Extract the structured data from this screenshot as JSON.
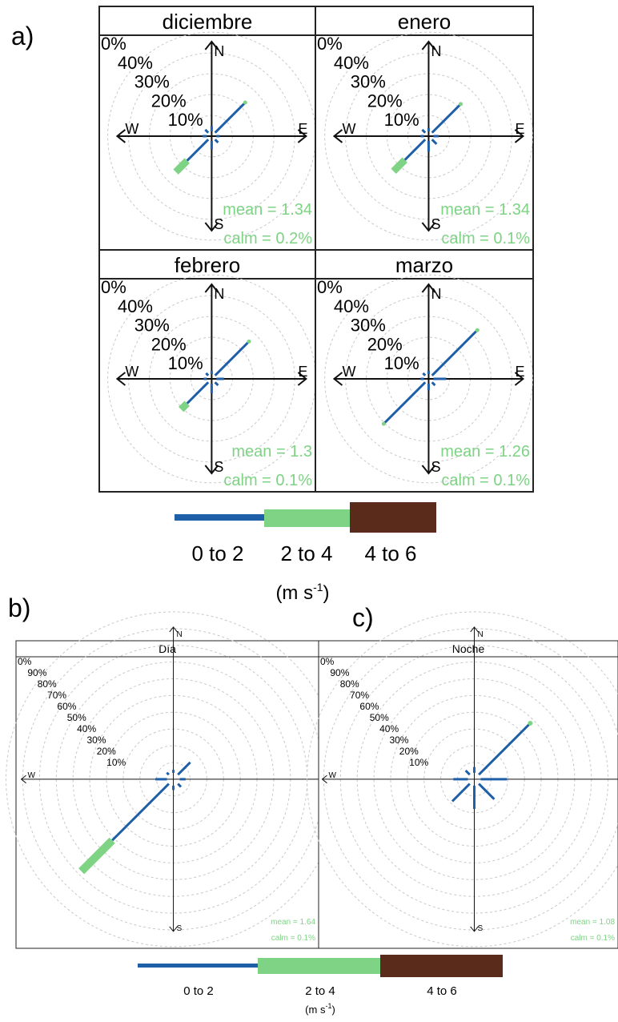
{
  "part_labels": {
    "a": "a)",
    "b": "b)",
    "c": "c)"
  },
  "colors": {
    "bin1": "#1f5fa8",
    "bin2": "#7ed385",
    "bin3": "#5a2a1a",
    "grid": "#c8c8c8",
    "annot": "#7ed385",
    "axis": "#111111"
  },
  "directions": [
    "N",
    "NE",
    "E",
    "SE",
    "S",
    "SW",
    "W",
    "NW"
  ],
  "compass": {
    "n": "N",
    "e": "E",
    "s": "S",
    "w": "W"
  },
  "chart_data": [
    {
      "type": "windrose",
      "group": "a",
      "title": "diciembre",
      "ring_labels": [
        "0%",
        "40%",
        "30%",
        "20%",
        "10%"
      ],
      "mean_text": "mean = 1.34",
      "calm_text": "calm = 0.2%",
      "series": [
        {
          "name": "0 to 2",
          "values": [
            5,
            40,
            3,
            4,
            8,
            28,
            4,
            4
          ]
        },
        {
          "name": "2 to 4",
          "values": [
            0,
            0,
            0,
            0,
            0,
            15,
            0,
            0
          ]
        }
      ]
    },
    {
      "type": "windrose",
      "group": "a",
      "title": "enero",
      "ring_labels": [
        "0%",
        "40%",
        "30%",
        "20%",
        "10%"
      ],
      "mean_text": "mean = 1.34",
      "calm_text": "calm = 0.1%",
      "series": [
        {
          "name": "0 to 2",
          "values": [
            3,
            38,
            5,
            6,
            10,
            27,
            3,
            4
          ]
        },
        {
          "name": "2 to 4",
          "values": [
            0,
            0,
            0,
            0,
            0,
            15,
            0,
            0
          ]
        }
      ]
    },
    {
      "type": "windrose",
      "group": "a",
      "title": "febrero",
      "ring_labels": [
        "0%",
        "40%",
        "30%",
        "20%",
        "10%"
      ],
      "mean_text": "mean = 1.3",
      "calm_text": "calm = 0.1%",
      "series": [
        {
          "name": "0 to 2",
          "values": [
            3,
            45,
            7,
            4,
            9,
            28,
            3,
            3
          ]
        },
        {
          "name": "2 to 4",
          "values": [
            0,
            0,
            0,
            0,
            0,
            8,
            0,
            0
          ]
        }
      ]
    },
    {
      "type": "windrose",
      "group": "a",
      "title": "marzo",
      "ring_labels": [
        "0%",
        "40%",
        "30%",
        "20%",
        "10%"
      ],
      "mean_text": "mean = 1.26",
      "calm_text": "calm = 0.1%",
      "series": [
        {
          "name": "0 to 2",
          "values": [
            3,
            60,
            12,
            4,
            6,
            55,
            3,
            3
          ]
        },
        {
          "name": "2 to 4",
          "values": [
            0,
            0,
            0,
            0,
            0,
            0,
            0,
            0
          ]
        }
      ]
    },
    {
      "type": "windrose",
      "group": "b",
      "title": "Día",
      "ring_labels": [
        "0%",
        "90%",
        "80%",
        "70%",
        "60%",
        "50%",
        "40%",
        "30%",
        "20%",
        "10%"
      ],
      "mean_text": "mean = 1.64",
      "calm_text": "calm = 0.1%",
      "series": [
        {
          "name": "0 to 2",
          "values": [
            2,
            12,
            4,
            3,
            3,
            55,
            8,
            2
          ]
        },
        {
          "name": "2 to 4",
          "values": [
            0,
            0,
            0,
            0,
            0,
            30,
            0,
            0
          ]
        }
      ]
    },
    {
      "type": "windrose",
      "group": "c",
      "title": "Noche",
      "ring_labels": [
        "0%",
        "90%",
        "80%",
        "70%",
        "60%",
        "50%",
        "40%",
        "30%",
        "20%",
        "10%"
      ],
      "mean_text": "mean = 1.08",
      "calm_text": "calm = 0.1%",
      "series": [
        {
          "name": "0 to 2",
          "values": [
            4,
            50,
            18,
            15,
            16,
            17,
            10,
            4
          ]
        },
        {
          "name": "2 to 4",
          "values": [
            0,
            0,
            0,
            0,
            0,
            0,
            0,
            0
          ]
        }
      ]
    }
  ],
  "legends": [
    {
      "group": "a",
      "bins": [
        "0 to 2",
        "2 to 4",
        "4 to 6"
      ],
      "unit": "(m s",
      "unit_sup": "-1",
      "unit_close": ")"
    },
    {
      "group": "bc",
      "bins": [
        "0 to 2",
        "2 to 4",
        "4 to 6"
      ],
      "unit": "(m s",
      "unit_sup": "-1",
      "unit_close": ")"
    }
  ]
}
